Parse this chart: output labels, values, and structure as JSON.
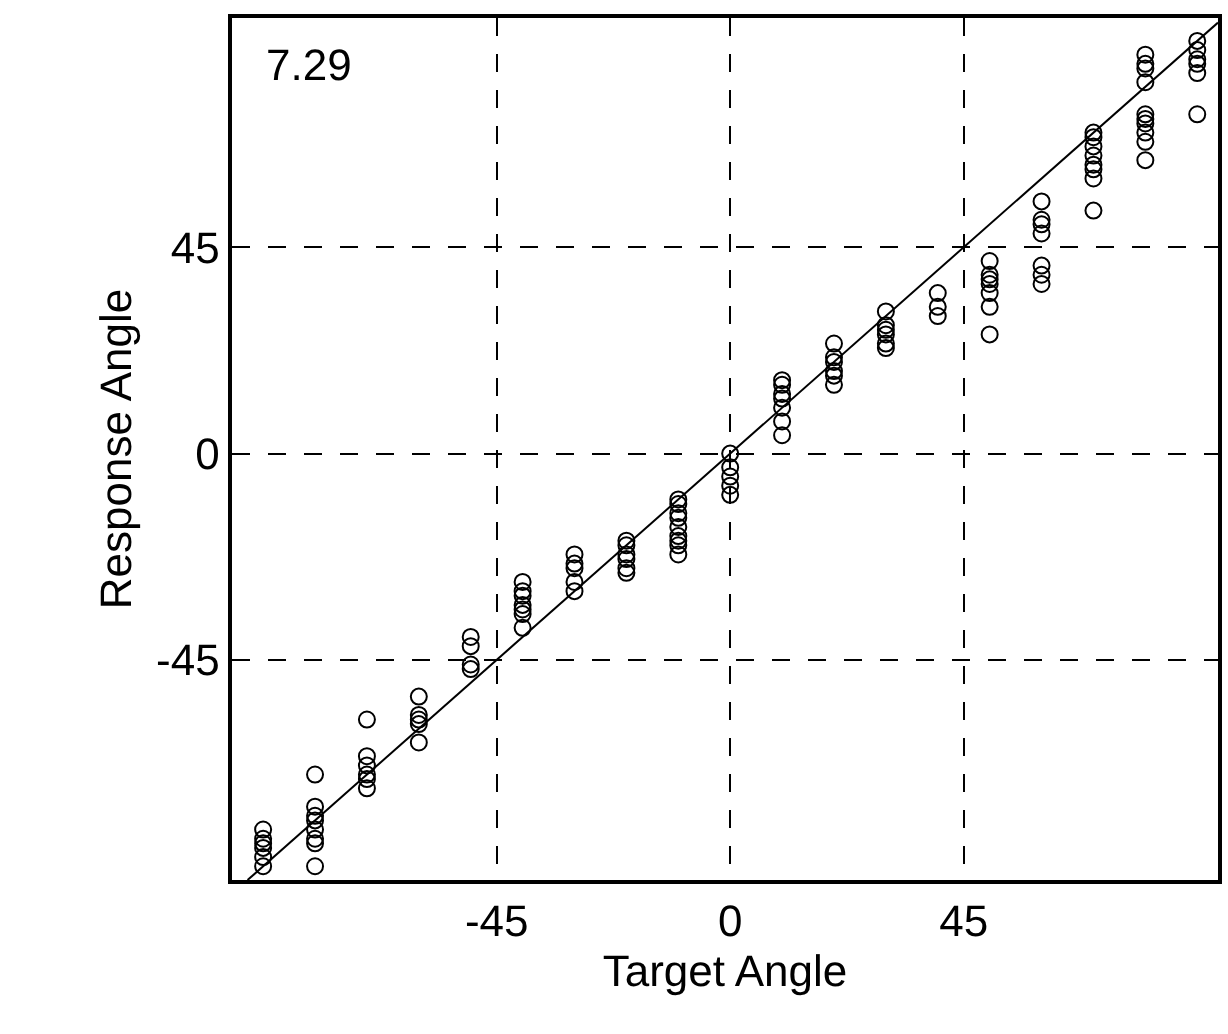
{
  "chart_data": {
    "type": "scatter",
    "xlabel": "Target Angle",
    "ylabel": "Response Angle",
    "annotations": [
      "7.29"
    ],
    "xlim": [
      -96,
      94
    ],
    "ylim": [
      -93,
      95
    ],
    "xticks": [
      -45,
      0,
      45
    ],
    "yticks": [
      -45,
      0,
      45
    ],
    "grid": true,
    "marker": "circle",
    "series": [
      {
        "color": "#000000",
        "x": [
          -90,
          -90,
          -90,
          -90,
          -90,
          -90,
          -80,
          -80,
          -80,
          -80,
          -80,
          -80,
          -80,
          -80,
          -70,
          -70,
          -70,
          -70,
          -70,
          -70,
          -60,
          -60,
          -60,
          -60,
          -60,
          -50,
          -50,
          -50,
          -50,
          -40,
          -40,
          -40,
          -40,
          -40,
          -40,
          -40,
          -30,
          -30,
          -30,
          -30,
          -30,
          -20,
          -20,
          -20,
          -20,
          -20,
          -20,
          -10,
          -10,
          -10,
          -10,
          -10,
          -10,
          -10,
          -10,
          -10,
          0,
          0,
          0,
          0,
          0,
          10,
          10,
          10,
          10,
          10,
          10,
          10,
          20,
          20,
          20,
          20,
          20,
          20,
          30,
          30,
          30,
          30,
          30,
          30,
          40,
          40,
          40,
          50,
          50,
          50,
          50,
          50,
          50,
          50,
          60,
          60,
          60,
          60,
          60,
          60,
          60,
          70,
          70,
          70,
          70,
          70,
          70,
          70,
          70,
          80,
          80,
          80,
          80,
          80,
          80,
          80,
          80,
          80,
          80,
          90,
          90,
          90,
          90,
          90,
          90
        ],
        "values": [
          -82,
          -84,
          -85,
          -86,
          -88,
          -90,
          -70,
          -77,
          -79,
          -80,
          -82,
          -84,
          -85,
          -90,
          -58,
          -66,
          -68,
          -70,
          -71,
          -73,
          -53,
          -57,
          -58,
          -59,
          -63,
          -40,
          -42,
          -46,
          -47,
          -28,
          -30,
          -31,
          -33,
          -34,
          -35,
          -38,
          -22,
          -24,
          -25,
          -28,
          -30,
          -19,
          -20,
          -22,
          -23,
          -25,
          -26,
          -10,
          -11,
          -13,
          -14,
          -16,
          -18,
          -19,
          -20,
          -22,
          0,
          -3,
          -5,
          -7,
          -9,
          16,
          15,
          13,
          12,
          10,
          7,
          4,
          24,
          21,
          20,
          18,
          17,
          15,
          31,
          28,
          27,
          26,
          24,
          23,
          35,
          32,
          30,
          42,
          39,
          38,
          37,
          35,
          32,
          26,
          55,
          51,
          50,
          48,
          41,
          39,
          37,
          70,
          69,
          67,
          65,
          63,
          62,
          60,
          53,
          87,
          85,
          84,
          81,
          74,
          73,
          72,
          70,
          68,
          64,
          90,
          88,
          86,
          85,
          83,
          74
        ]
      },
      {
        "type": "line",
        "color": "#000000",
        "marker": "none",
        "x": [
          -93,
          94
        ],
        "values": [
          -93,
          94
        ]
      }
    ]
  }
}
